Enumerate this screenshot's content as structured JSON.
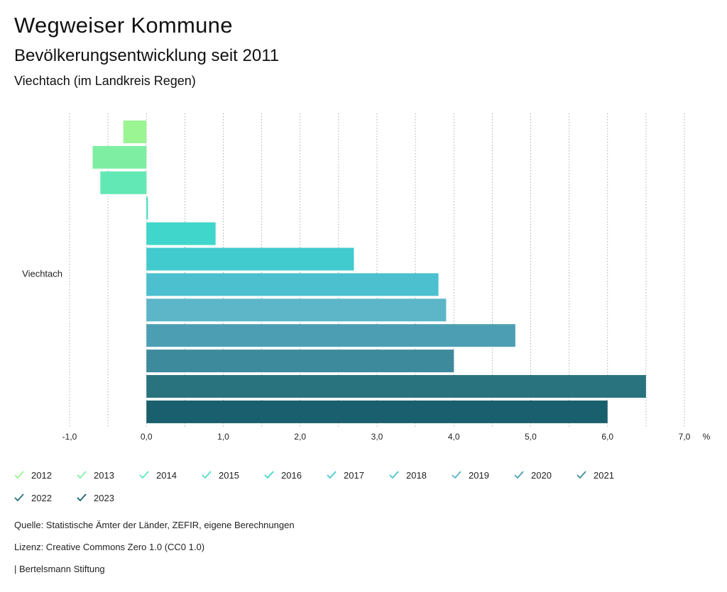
{
  "header": {
    "title": "Wegweiser Kommune",
    "subtitle": "Bevölkerungsentwicklung seit 2011",
    "region": "Viechtach (im Landkreis Regen)"
  },
  "chart_data": {
    "type": "bar",
    "orientation": "horizontal",
    "categories": [
      "Viechtach"
    ],
    "series": [
      {
        "name": "2012",
        "values": [
          -0.3
        ],
        "color": "#9af592"
      },
      {
        "name": "2013",
        "values": [
          -0.7
        ],
        "color": "#7eeea3"
      },
      {
        "name": "2014",
        "values": [
          -0.6
        ],
        "color": "#62e8b4"
      },
      {
        "name": "2015",
        "values": [
          0.02
        ],
        "color": "#4de0c2"
      },
      {
        "name": "2016",
        "values": [
          0.9
        ],
        "color": "#40d6cb"
      },
      {
        "name": "2017",
        "values": [
          2.7
        ],
        "color": "#42cbcf"
      },
      {
        "name": "2018",
        "values": [
          3.8
        ],
        "color": "#4cc0cf"
      },
      {
        "name": "2019",
        "values": [
          3.9
        ],
        "color": "#5cb6c8"
      },
      {
        "name": "2020",
        "values": [
          4.8
        ],
        "color": "#4c9fb3"
      },
      {
        "name": "2021",
        "values": [
          4.0
        ],
        "color": "#3d8a9c"
      },
      {
        "name": "2022",
        "values": [
          6.5
        ],
        "color": "#29737f"
      },
      {
        "name": "2023",
        "values": [
          6.0
        ],
        "color": "#1a5f6d"
      }
    ],
    "xlim": [
      -1.0,
      7.0
    ],
    "x_ticks": [
      -1.0,
      0.0,
      1.0,
      2.0,
      3.0,
      4.0,
      5.0,
      6.0,
      7.0
    ],
    "x_tick_labels": [
      "-1,0",
      "0,0",
      "1,0",
      "2,0",
      "3,0",
      "4,0",
      "5,0",
      "6,0",
      "7,0"
    ],
    "x_unit": "%",
    "grid": true,
    "legend_position": "bottom"
  },
  "footer": {
    "source": "Quelle: Statistische Ämter der Länder, ZEFIR, eigene Berechnungen",
    "license": "Lizenz: Creative Commons Zero 1.0 (CC0 1.0)",
    "publisher": "| Bertelsmann Stiftung"
  }
}
